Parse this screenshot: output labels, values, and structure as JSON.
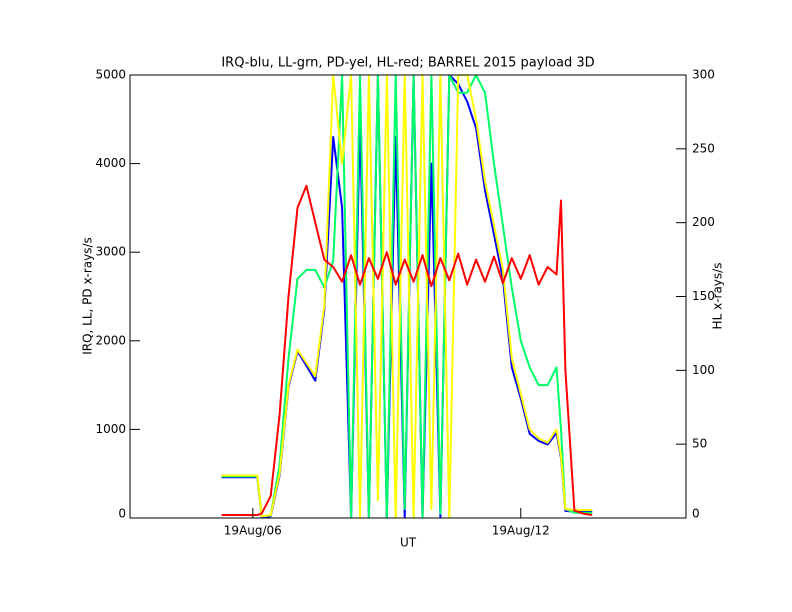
{
  "chart_data": {
    "type": "line",
    "title": "IRQ-blu, LL-grn, PD-yel, HL-red; BARREL 2015 payload 3D",
    "x_label": "UT",
    "y_label": "IRQ, LL, PD x-rays/s",
    "y2_label": "HL x-rays/s",
    "xlim": [
      3.25,
      15.7
    ],
    "xticks": [
      {
        "value": 6,
        "label": "19Aug/06"
      },
      {
        "value": 12,
        "label": "19Aug/12"
      }
    ],
    "ylim": [
      0,
      5000
    ],
    "yticks": [
      0,
      1000,
      2000,
      3000,
      4000,
      5000
    ],
    "y2lim": [
      0,
      300
    ],
    "y2ticks": [
      0,
      50,
      100,
      150,
      200,
      250,
      300
    ],
    "x": [
      5.3,
      5.5,
      5.7,
      5.9,
      6.1,
      6.2,
      6.4,
      6.6,
      6.8,
      7.0,
      7.2,
      7.4,
      7.6,
      7.8,
      8.0,
      8.2,
      8.4,
      8.6,
      8.8,
      9.0,
      9.2,
      9.4,
      9.6,
      9.8,
      10.0,
      10.2,
      10.4,
      10.6,
      10.8,
      11.0,
      11.2,
      11.4,
      11.6,
      11.8,
      12.0,
      12.2,
      12.4,
      12.6,
      12.8,
      12.9,
      13.0,
      13.2,
      13.4,
      13.6
    ],
    "series": [
      {
        "name": "IRQ",
        "color": "#0000ff",
        "values": [
          460,
          460,
          460,
          460,
          460,
          10,
          20,
          480,
          1480,
          1880,
          1720,
          1550,
          2350,
          4300,
          3500,
          0,
          4500,
          0,
          5000,
          0,
          4300,
          0,
          5000,
          0,
          4000,
          0,
          5000,
          4900,
          4700,
          4400,
          3700,
          3200,
          2700,
          1700,
          1350,
          950,
          870,
          830,
          960,
          680,
          80,
          70,
          70,
          70
        ]
      },
      {
        "name": "LL",
        "color": "#00ff66",
        "values": [
          470,
          470,
          470,
          470,
          470,
          20,
          30,
          600,
          1800,
          2700,
          2800,
          2800,
          2600,
          2900,
          5000,
          0,
          5000,
          0,
          5000,
          0,
          5000,
          100,
          5000,
          0,
          5000,
          50,
          5000,
          4800,
          4800,
          5000,
          4800,
          4000,
          3300,
          2600,
          2000,
          1700,
          1500,
          1500,
          1700,
          1000,
          100,
          60,
          60,
          60
        ]
      },
      {
        "name": "PD",
        "color": "#ffff00",
        "values": [
          480,
          480,
          480,
          480,
          480,
          20,
          30,
          500,
          1500,
          1900,
          1750,
          1600,
          2400,
          5000,
          4000,
          5000,
          0,
          5000,
          200,
          5000,
          0,
          5000,
          0,
          5000,
          100,
          5000,
          0,
          5000,
          5000,
          4500,
          3800,
          3300,
          2800,
          1800,
          1400,
          1000,
          900,
          850,
          1000,
          700,
          100,
          90,
          90,
          90
        ]
      },
      {
        "name": "HL",
        "color": "#ff0000",
        "axis": "y2",
        "values": [
          2,
          2,
          2,
          2,
          2,
          3,
          15,
          70,
          150,
          210,
          225,
          200,
          175,
          170,
          160,
          178,
          158,
          176,
          162,
          180,
          158,
          175,
          160,
          178,
          157,
          176,
          161,
          179,
          158,
          175,
          160,
          177,
          159,
          176,
          162,
          178,
          158,
          170,
          165,
          215,
          100,
          5,
          3,
          2
        ]
      }
    ]
  }
}
